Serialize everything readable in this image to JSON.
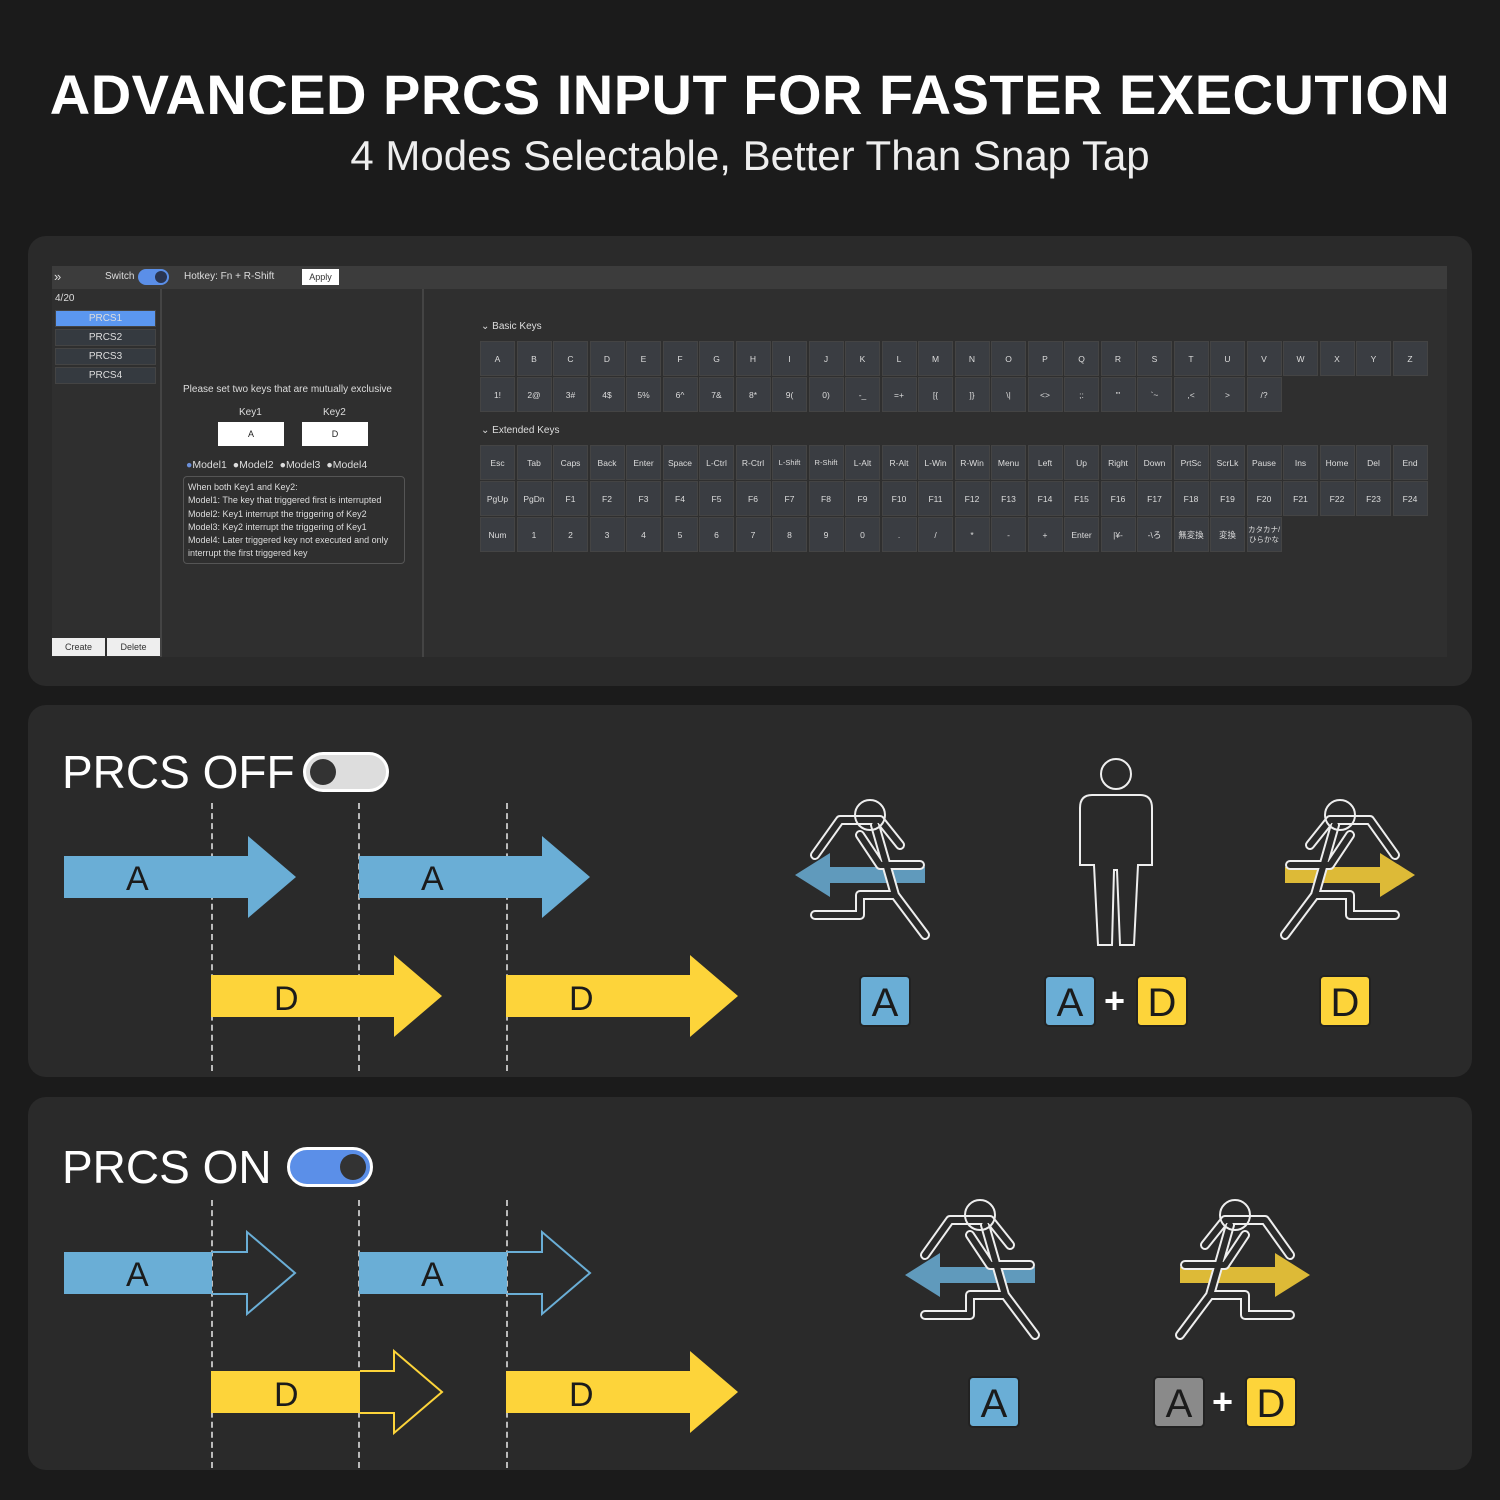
{
  "header": {
    "title": "ADVANCED PRCS INPUT FOR FASTER EXECUTION",
    "subtitle": "4 Modes Selectable, Better Than Snap Tap"
  },
  "app": {
    "topbar": {
      "expand_icon": "double-chevron-right-icon",
      "switch_label": "Switch",
      "switch_on": true,
      "hotkey": "Hotkey: Fn + R-Shift",
      "apply": "Apply"
    },
    "sidebar": {
      "count": "4/20",
      "items": [
        "PRCS1",
        "PRCS2",
        "PRCS3",
        "PRCS4"
      ],
      "selected": "PRCS1",
      "create": "Create",
      "delete": "Delete"
    },
    "config": {
      "prompt": "Please set two keys that are mutually exclusive",
      "key1_label": "Key1",
      "key2_label": "Key2",
      "key1": "A",
      "key2": "D",
      "modes": [
        "Model1",
        "Model2",
        "Model3",
        "Model4"
      ],
      "selected_mode": "Model1",
      "desc": [
        "When both Key1 and Key2:",
        "Model1: The key that triggered first is interrupted",
        "Model2: Key1 interrupt the triggering of Key2",
        "Model3: Key2 interrupt the triggering of Key1",
        "Model4: Later triggered key not executed and only interrupt the first triggered key"
      ]
    },
    "basic": {
      "title": "Basic Keys",
      "rows": [
        [
          "A",
          "B",
          "C",
          "D",
          "E",
          "F",
          "G",
          "H",
          "I",
          "J",
          "K",
          "L",
          "M",
          "N",
          "O",
          "P",
          "Q",
          "R",
          "S",
          "T",
          "U",
          "V",
          "W",
          "X",
          "Y",
          "Z"
        ],
        [
          "1!",
          "2@",
          "3#",
          "4$",
          "5%",
          "6^",
          "7&",
          "8*",
          "9(",
          "0)",
          "-_",
          "=+",
          "[{",
          "]}",
          "\\|",
          "<>",
          ";:",
          "\"'",
          "`~",
          ",<",
          ">",
          "/?"
        ]
      ]
    },
    "extended": {
      "title": "Extended Keys",
      "rows": [
        [
          "Esc",
          "Tab",
          "Caps",
          "Back",
          "Enter",
          "Space",
          "L-Ctrl",
          "R-Ctrl",
          "L-Shift",
          "R-Shift",
          "L-Alt",
          "R-Alt",
          "L-Win",
          "R-Win",
          "Menu",
          "Left",
          "Up",
          "Right",
          "Down",
          "PrtSc",
          "ScrLk",
          "Pause",
          "Ins",
          "Home",
          "Del",
          "End"
        ],
        [
          "PgUp",
          "PgDn",
          "F1",
          "F2",
          "F3",
          "F4",
          "F5",
          "F6",
          "F7",
          "F8",
          "F9",
          "F10",
          "F11",
          "F12",
          "F13",
          "F14",
          "F15",
          "F16",
          "F17",
          "F18",
          "F19",
          "F20",
          "F21",
          "F22",
          "F23",
          "F24"
        ],
        [
          "Num",
          "1",
          "2",
          "3",
          "4",
          "5",
          "6",
          "7",
          "8",
          "9",
          "0",
          ".",
          "/",
          "*",
          "-",
          "+",
          "Enter",
          "|¥-",
          "-\\ろ",
          "無変換",
          "変換",
          "カタカナ/ひらかな"
        ]
      ]
    }
  },
  "off": {
    "title": "PRCS OFF",
    "toggle_on": false,
    "arrow_a": "A",
    "arrow_d": "D",
    "results": [
      {
        "keys": [
          "A"
        ]
      },
      {
        "keys": [
          "A",
          "D"
        ]
      },
      {
        "keys": [
          "D"
        ]
      }
    ],
    "plus": "+"
  },
  "on": {
    "title": "PRCS ON",
    "toggle_on": true,
    "arrow_a": "A",
    "arrow_d": "D",
    "results": [
      {
        "keys": [
          "A"
        ]
      },
      {
        "keys": [
          "A",
          "D"
        ]
      }
    ],
    "plus": "+"
  },
  "colors": {
    "blue": "#6aaed6",
    "yellow": "#fdd43a",
    "gray": "#8a8a8a",
    "accent": "#5b97f0"
  }
}
